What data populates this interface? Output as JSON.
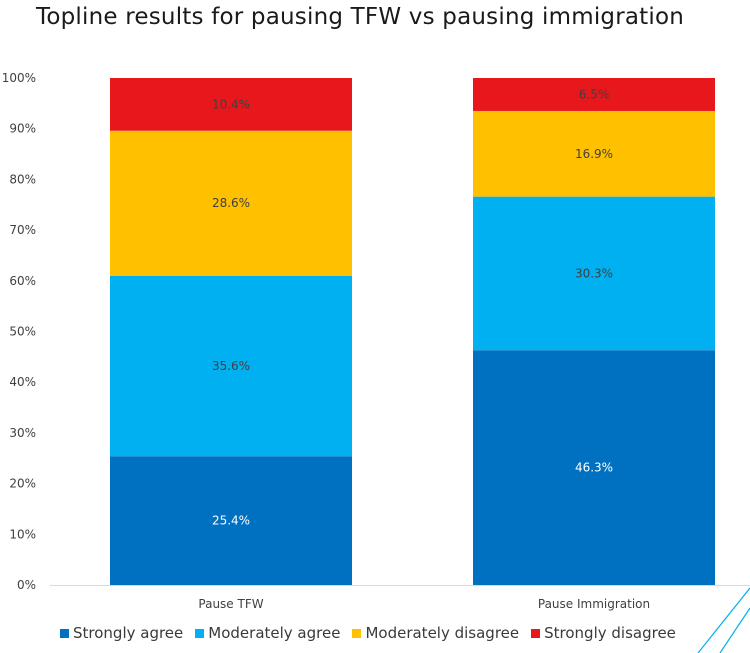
{
  "chart_data": {
    "type": "bar",
    "stacked": true,
    "title": "Topline results for pausing TFW vs pausing immigration",
    "categories": [
      "Pause TFW",
      "Pause Immigration"
    ],
    "series": [
      {
        "name": "Strongly agree",
        "color": "#0070c0",
        "values": [
          25.4,
          46.3
        ],
        "labels": [
          "25.4%",
          "46.3%"
        ],
        "label_color": "#ffffff"
      },
      {
        "name": "Moderately agree",
        "color": "#00b0f0",
        "values": [
          35.6,
          30.3
        ],
        "labels": [
          "35.6%",
          "30.3%"
        ],
        "label_color": "#404040"
      },
      {
        "name": "Moderately disagree",
        "color": "#ffc000",
        "values": [
          28.6,
          16.9
        ],
        "labels": [
          "28.6%",
          "16.9%"
        ],
        "label_color": "#404040"
      },
      {
        "name": "Strongly disagree",
        "color": "#e8171c",
        "values": [
          10.4,
          6.5
        ],
        "labels": [
          "10.4%",
          "6.5%"
        ],
        "label_color": "#404040"
      }
    ],
    "ylim": [
      0,
      100
    ],
    "yticks": [
      "0%",
      "10%",
      "20%",
      "30%",
      "40%",
      "50%",
      "60%",
      "70%",
      "80%",
      "90%",
      "100%"
    ],
    "xlabel": "",
    "ylabel": "",
    "grid": false,
    "legend_position": "bottom"
  },
  "decoration_color": "#00b0f0"
}
